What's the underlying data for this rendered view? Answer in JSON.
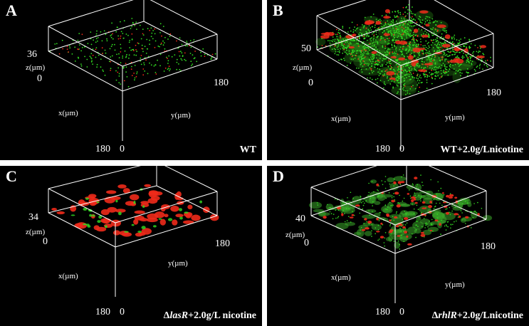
{
  "panels": [
    {
      "label": "A",
      "condition": {
        "prefix": "",
        "italic": "",
        "rest": "WT"
      },
      "z_max": "36",
      "z_zero": "0",
      "axis_z": "z(µm)",
      "axis_x": "x(µm)",
      "axis_y": "y(µm)",
      "x_max": "180",
      "y_max": "180",
      "origin": "0",
      "green_density": "sparse",
      "red_density": "sparse"
    },
    {
      "label": "B",
      "condition": {
        "prefix": "",
        "italic": "",
        "rest": "WT+2.0g/Lnicotine"
      },
      "z_max": "50",
      "z_zero": "0",
      "axis_z": "z(µm)",
      "axis_x": "x(µm)",
      "axis_y": "y(µm)",
      "x_max": "180",
      "y_max": "180",
      "origin": "0",
      "green_density": "dense",
      "red_density": "moderate"
    },
    {
      "label": "C",
      "condition": {
        "prefix": "Δ",
        "italic": "lasR",
        "rest": "+2.0g/L nicotine"
      },
      "z_max": "34",
      "z_zero": "0",
      "axis_z": "z(µm)",
      "axis_x": "x(µm)",
      "axis_y": "y(µm)",
      "x_max": "180",
      "y_max": "180",
      "origin": "0",
      "green_density": "sparse",
      "red_density": "clustered"
    },
    {
      "label": "D",
      "condition": {
        "prefix": "Δ",
        "italic": "rhlR",
        "rest": "+2.0g/Lnicotine"
      },
      "z_max": "40",
      "z_zero": "0",
      "axis_z": "z(µm)",
      "axis_x": "x(µm)",
      "axis_y": "y(µm)",
      "x_max": "180",
      "y_max": "180",
      "origin": "0",
      "green_density": "patchy",
      "red_density": "scattered"
    }
  ],
  "colors": {
    "background": "#000000",
    "green_signal": "#33dd22",
    "red_signal": "#ee2a1a",
    "box_lines": "#ffffff"
  }
}
